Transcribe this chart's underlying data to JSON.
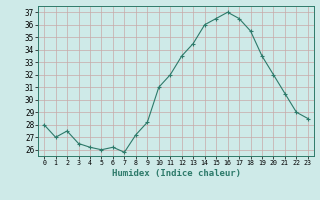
{
  "x": [
    0,
    1,
    2,
    3,
    4,
    5,
    6,
    7,
    8,
    9,
    10,
    11,
    12,
    13,
    14,
    15,
    16,
    17,
    18,
    19,
    20,
    21,
    22,
    23
  ],
  "y": [
    28.0,
    27.0,
    27.5,
    26.5,
    26.2,
    26.0,
    26.2,
    25.8,
    27.2,
    28.2,
    31.0,
    32.0,
    33.5,
    34.5,
    36.0,
    36.5,
    37.0,
    36.5,
    35.5,
    33.5,
    32.0,
    30.5,
    29.0,
    28.5
  ],
  "xlabel": "Humidex (Indice chaleur)",
  "yticks": [
    26,
    27,
    28,
    29,
    30,
    31,
    32,
    33,
    34,
    35,
    36,
    37
  ],
  "xtick_labels": [
    "0",
    "1",
    "2",
    "3",
    "4",
    "5",
    "6",
    "7",
    "8",
    "9",
    "10",
    "11",
    "12",
    "13",
    "14",
    "15",
    "16",
    "17",
    "18",
    "19",
    "20",
    "21",
    "22",
    "23"
  ],
  "line_color": "#2d7a6a",
  "marker": "+",
  "bg_color": "#ceeae8",
  "grid_color_minor": "#d8b0b0",
  "grid_color_major": "#b8d4d2",
  "spine_color": "#2d7a6a"
}
